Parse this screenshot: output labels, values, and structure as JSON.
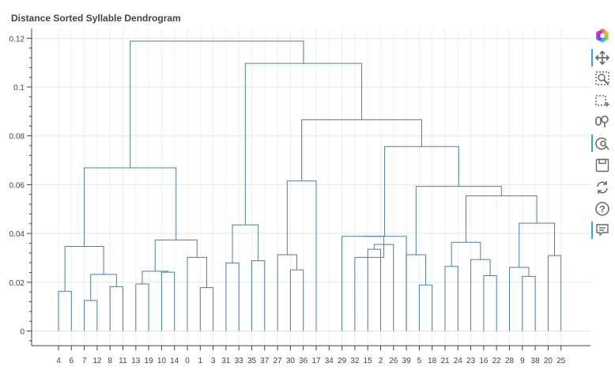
{
  "chart_data": {
    "type": "dendrogram",
    "title": "Distance Sorted Syllable Dendrogram",
    "xlabel": "",
    "ylabel": "",
    "ylim": [
      -0.006,
      0.124
    ],
    "y_ticks": [
      0,
      0.02,
      0.04,
      0.06,
      0.08,
      0.1,
      0.12
    ],
    "y_tick_labels": [
      "0",
      "0.02",
      "0.04",
      "0.06",
      "0.08",
      "0.1",
      "0.12"
    ],
    "grid": true,
    "leaf_order": [
      "4",
      "6",
      "7",
      "12",
      "8",
      "11",
      "13",
      "19",
      "10",
      "14",
      "0",
      "1",
      "3",
      "31",
      "33",
      "35",
      "37",
      "27",
      "30",
      "36",
      "17",
      "34",
      "29",
      "32",
      "15",
      "2",
      "26",
      "39",
      "5",
      "18",
      "21",
      "24",
      "23",
      "16",
      "22",
      "28",
      "9",
      "38",
      "20",
      "25"
    ],
    "merges": [
      {
        "left": "L0",
        "right": "L1",
        "height": 0.0163
      },
      {
        "left": "L2",
        "right": "L3",
        "height": 0.0125
      },
      {
        "left": "L4",
        "right": "L5",
        "height": 0.0182
      },
      {
        "left": "m1",
        "right": "m2",
        "height": 0.0232
      },
      {
        "left": "m0",
        "right": "m3",
        "height": 0.0347
      },
      {
        "left": "L6",
        "right": "L7",
        "height": 0.0193
      },
      {
        "left": "L8",
        "right": "L9",
        "height": 0.0241
      },
      {
        "left": "m5",
        "right": "m6",
        "height": 0.0245
      },
      {
        "left": "L11",
        "right": "L12",
        "height": 0.0178
      },
      {
        "left": "L10",
        "right": "m8",
        "height": 0.0302
      },
      {
        "left": "m7",
        "right": "m9",
        "height": 0.0373
      },
      {
        "left": "m4",
        "right": "m10",
        "height": 0.0669
      },
      {
        "left": "L13",
        "right": "L14",
        "height": 0.0279
      },
      {
        "left": "L15",
        "right": "L16",
        "height": 0.0288
      },
      {
        "left": "m12",
        "right": "m13",
        "height": 0.0435
      },
      {
        "left": "L18",
        "right": "L19",
        "height": 0.0251
      },
      {
        "left": "L17",
        "right": "m15",
        "height": 0.0313
      },
      {
        "left": "m16",
        "right": "L20",
        "height": 0.0615
      },
      {
        "left": "L24",
        "right": "L25",
        "height": 0.0335
      },
      {
        "left": "m18",
        "right": "L26",
        "height": 0.0355
      },
      {
        "left": "L23",
        "right": "m19",
        "height": 0.0302
      },
      {
        "left": "L22",
        "right": "m19",
        "height": 0.0388
      },
      {
        "left": "L27",
        "right": "m21",
        "height": 0.0388
      },
      {
        "left": "L28",
        "right": "L29",
        "height": 0.0189
      },
      {
        "left": "L27",
        "right": "m23",
        "height": 0.0313
      },
      {
        "left": "L30",
        "right": "L31",
        "height": 0.0265
      },
      {
        "left": "L33",
        "right": "L34",
        "height": 0.0227
      },
      {
        "left": "L32",
        "right": "m26",
        "height": 0.0293
      },
      {
        "left": "m25",
        "right": "m27",
        "height": 0.0364
      },
      {
        "left": "L36",
        "right": "L37",
        "height": 0.0224
      },
      {
        "left": "L35",
        "right": "m29",
        "height": 0.0261
      },
      {
        "left": "L38",
        "right": "L39",
        "height": 0.0309
      },
      {
        "left": "m30",
        "right": "m31",
        "height": 0.0442
      },
      {
        "left": "m28",
        "right": "m32",
        "height": 0.0554
      },
      {
        "left": "m24",
        "right": "m33",
        "height": 0.0593
      },
      {
        "left": "m22",
        "right": "m34",
        "height": 0.0756
      },
      {
        "left": "m17",
        "right": "m35",
        "height": 0.0866
      },
      {
        "left": "m14",
        "right": "m36",
        "height": 0.1097
      },
      {
        "left": "m11",
        "right": "m37",
        "height": 0.1188
      }
    ],
    "color": "#4a7fa8"
  },
  "toolbar": {
    "tools": [
      "bokeh-logo-icon",
      "pan-icon",
      "box-zoom-icon",
      "box-select-icon",
      "wheel-zoom-icon",
      "tap-icon",
      "save-icon",
      "reset-icon",
      "help-icon",
      "hover-icon"
    ]
  }
}
